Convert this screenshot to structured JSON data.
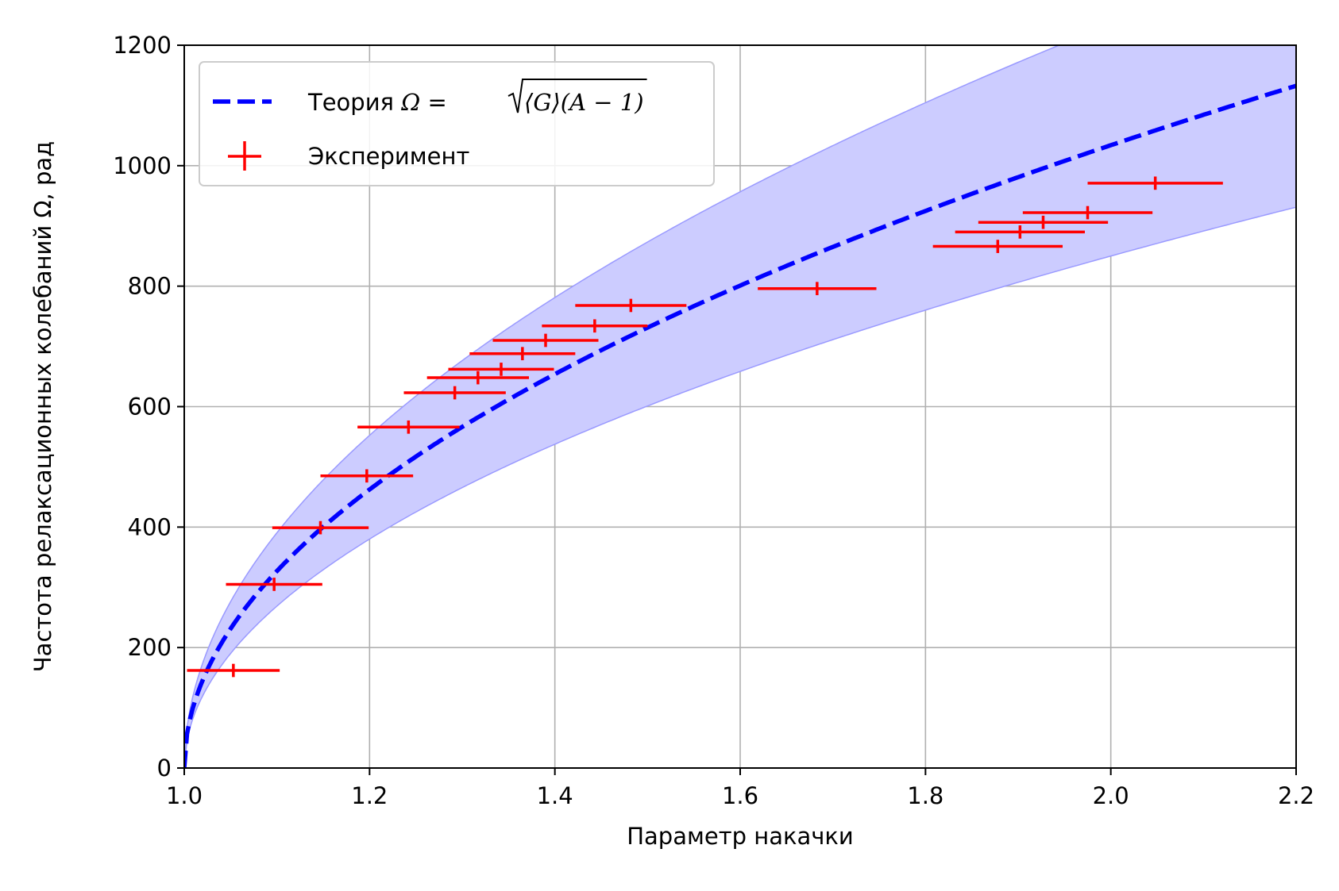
{
  "chart_data": {
    "type": "line",
    "xlabel": "Параметр накачки",
    "ylabel": "Частота релаксационных колебаний Ω, рад",
    "xlim": [
      1.0,
      2.2
    ],
    "ylim": [
      0,
      1200
    ],
    "x_ticks": [
      "1.0",
      "1.2",
      "1.4",
      "1.6",
      "1.8",
      "2.0",
      "2.2"
    ],
    "y_ticks": [
      "0",
      "200",
      "400",
      "600",
      "800",
      "1000",
      "1200"
    ],
    "grid": true,
    "legend_position": "top-left",
    "theory": {
      "name": "Теория Ω = √⟨G⟩(A − 1)",
      "legend_prefix": "Теория ",
      "formula_lhs": "Ω",
      "formula_eq": " = ",
      "formula_radicand": "⟨G⟩(A − 1)",
      "coefficient": 1034,
      "band_lower_coefficient": 850,
      "band_upper_coefficient": 1235,
      "color": "#0000ff",
      "band_color": "#ccccff"
    },
    "experiment": {
      "name": "Эксперимент",
      "color": "#ff0000",
      "points": [
        {
          "x": 1.053,
          "y": 162,
          "xerr": 0.05,
          "yerr": 11
        },
        {
          "x": 1.097,
          "y": 305,
          "xerr": 0.052,
          "yerr": 11
        },
        {
          "x": 1.147,
          "y": 399,
          "xerr": 0.052,
          "yerr": 11
        },
        {
          "x": 1.197,
          "y": 485,
          "xerr": 0.05,
          "yerr": 11
        },
        {
          "x": 1.242,
          "y": 566,
          "xerr": 0.055,
          "yerr": 11
        },
        {
          "x": 1.292,
          "y": 623,
          "xerr": 0.055,
          "yerr": 11
        },
        {
          "x": 1.317,
          "y": 648,
          "xerr": 0.055,
          "yerr": 11
        },
        {
          "x": 1.342,
          "y": 662,
          "xerr": 0.057,
          "yerr": 11
        },
        {
          "x": 1.365,
          "y": 688,
          "xerr": 0.057,
          "yerr": 11
        },
        {
          "x": 1.39,
          "y": 710,
          "xerr": 0.057,
          "yerr": 11
        },
        {
          "x": 1.443,
          "y": 734,
          "xerr": 0.057,
          "yerr": 11
        },
        {
          "x": 1.482,
          "y": 768,
          "xerr": 0.06,
          "yerr": 11
        },
        {
          "x": 1.683,
          "y": 796,
          "xerr": 0.064,
          "yerr": 11
        },
        {
          "x": 1.878,
          "y": 866,
          "xerr": 0.07,
          "yerr": 11
        },
        {
          "x": 1.902,
          "y": 890,
          "xerr": 0.07,
          "yerr": 11
        },
        {
          "x": 1.927,
          "y": 906,
          "xerr": 0.07,
          "yerr": 11
        },
        {
          "x": 1.975,
          "y": 922,
          "xerr": 0.07,
          "yerr": 11
        },
        {
          "x": 2.048,
          "y": 971,
          "xerr": 0.073,
          "yerr": 11
        }
      ]
    }
  }
}
